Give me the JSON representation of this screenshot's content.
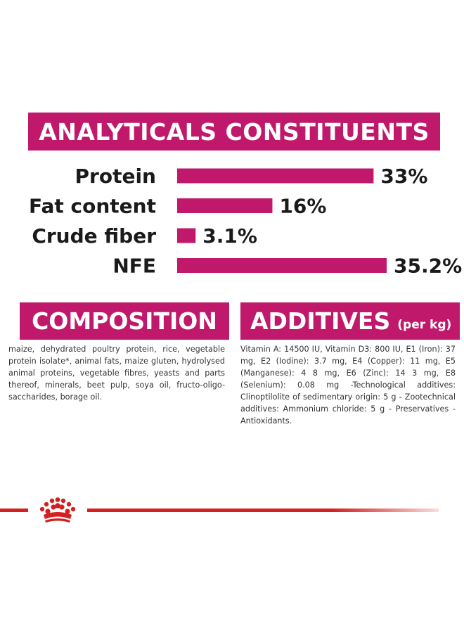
{
  "analytics": {
    "title": "ANALYTICALS CONSTITUENTS"
  },
  "chart_data": {
    "type": "bar",
    "orientation": "horizontal",
    "categories": [
      "Protein",
      "Fat content",
      "Crude fiber",
      "NFE"
    ],
    "values": [
      33,
      16,
      3.1,
      35.2
    ],
    "value_labels": [
      "33%",
      "16%",
      "3.1%",
      "35.2%"
    ],
    "unit": "%",
    "xlim": [
      0,
      35.2
    ],
    "grid": false,
    "bar_color": "#c0196b"
  },
  "composition": {
    "title": "COMPOSITION",
    "text": "maize, dehydrated poultry protein, rice, vegetable protein isolate*, animal fats, maize gluten, hydrolysed animal proteins, vegetable fibres, yeasts and parts thereof, minerals, beet pulp, soya oil, fructo-oligo-saccharides, borage oil."
  },
  "additives": {
    "title": "ADDITIVES",
    "unit": "(per kg)",
    "text": "Vitamin A: 14500 IU, Vitamin D3: 800 IU, E1 (Iron): 37 mg, E2 (Iodine): 3.7 mg, E4 (Copper): 11 mg, E5 (Manganese): 4 8 mg, E6 (Zinc): 14 3 mg, E8 (Selenium): 0.08 mg -Technological additives: Clinoptilolite of sedimentary origin: 5 g - Zootechnical additives: Ammonium chloride: 5 g - Preservatives - Antioxidants."
  },
  "colors": {
    "accent": "#c0196b",
    "footer_line": "#d42020"
  },
  "logo": {
    "icon": "crown-icon"
  }
}
